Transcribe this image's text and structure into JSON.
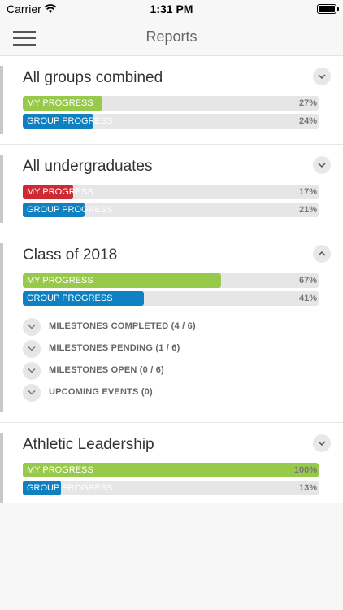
{
  "status_bar": {
    "carrier": "Carrier",
    "time": "1:31 PM"
  },
  "nav": {
    "title": "Reports"
  },
  "colors": {
    "green": "#97c94a",
    "blue": "#0f80c0",
    "red": "#cc2a35"
  },
  "groups": [
    {
      "title": "All groups combined",
      "expanded": false,
      "my": {
        "label": "MY PROGRESS",
        "pct_text": "27%",
        "value": 27,
        "color": "#97c94a"
      },
      "group": {
        "label": "GROUP PROGRESS",
        "pct_text": "24%",
        "value": 24,
        "color": "#0f80c0"
      }
    },
    {
      "title": "All undergraduates",
      "expanded": false,
      "my": {
        "label": "MY PROGRESS",
        "pct_text": "17%",
        "value": 17,
        "color": "#cc2a35"
      },
      "group": {
        "label": "GROUP PROGRESS",
        "pct_text": "21%",
        "value": 21,
        "color": "#0f80c0"
      }
    },
    {
      "title": "Class of 2018",
      "expanded": true,
      "my": {
        "label": "MY PROGRESS",
        "pct_text": "67%",
        "value": 67,
        "color": "#97c94a"
      },
      "group": {
        "label": "GROUP PROGRESS",
        "pct_text": "41%",
        "value": 41,
        "color": "#0f80c0"
      },
      "milestones": [
        "MILESTONES COMPLETED (4 / 6)",
        "MILESTONES PENDING (1 / 6)",
        "MILESTONES OPEN (0 / 6)",
        "UPCOMING EVENTS (0)"
      ]
    },
    {
      "title": "Athletic Leadership",
      "expanded": false,
      "my": {
        "label": "MY PROGRESS",
        "pct_text": "100%",
        "value": 100,
        "color": "#97c94a"
      },
      "group": {
        "label": "GROUP PROGRESS",
        "pct_text": "13%",
        "value": 13,
        "color": "#0f80c0"
      }
    }
  ]
}
